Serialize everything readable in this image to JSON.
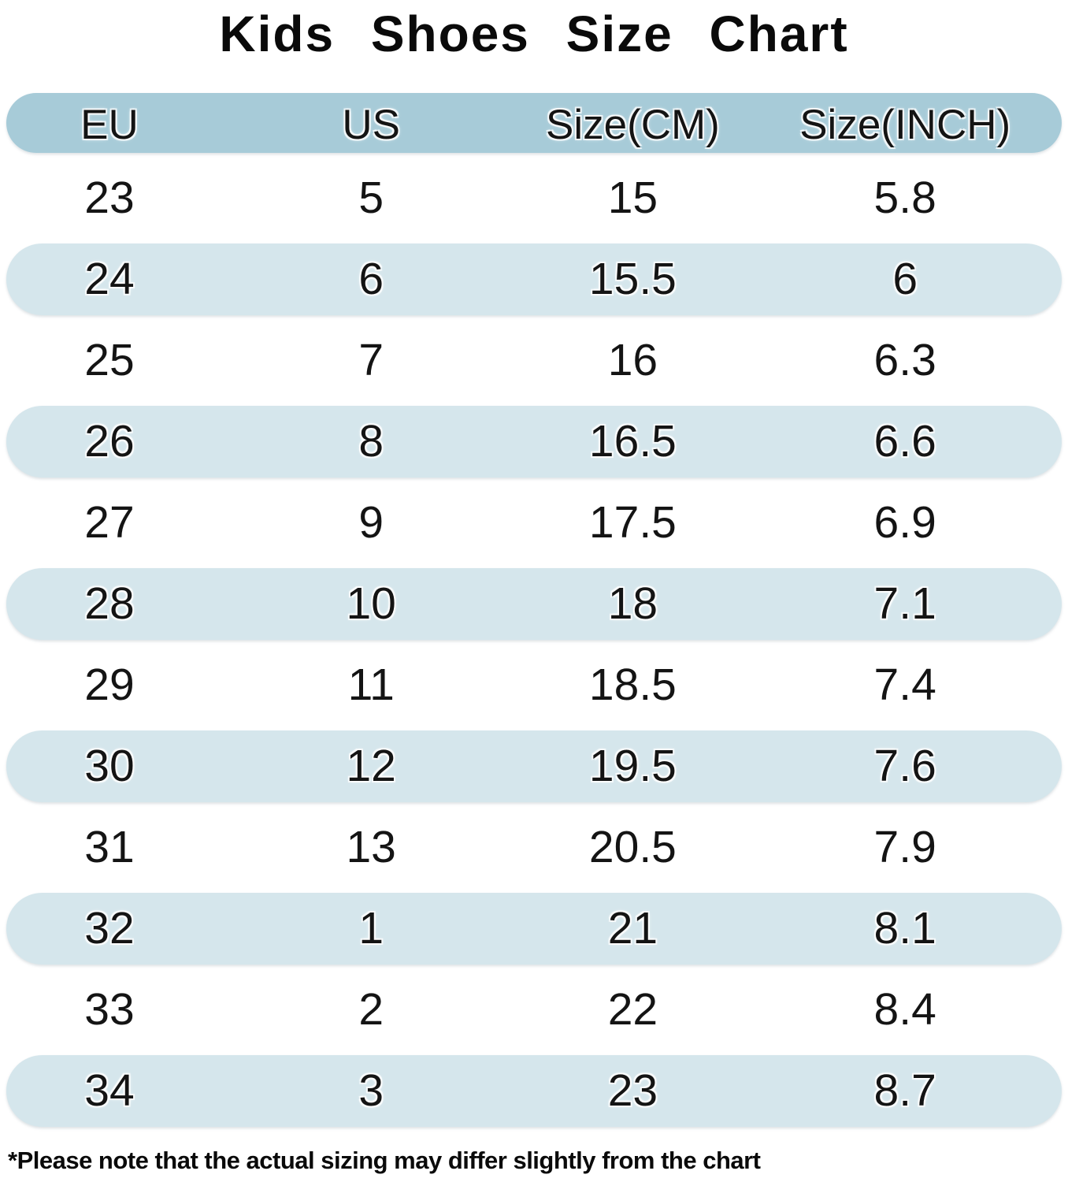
{
  "title": "Kids Shoes Size Chart",
  "table": {
    "columns": [
      "EU",
      "US",
      "Size(CM)",
      "Size(INCH)"
    ],
    "rows": [
      [
        "23",
        "5",
        "15",
        "5.8"
      ],
      [
        "24",
        "6",
        "15.5",
        "6"
      ],
      [
        "25",
        "7",
        "16",
        "6.3"
      ],
      [
        "26",
        "8",
        "16.5",
        "6.6"
      ],
      [
        "27",
        "9",
        "17.5",
        "6.9"
      ],
      [
        "28",
        "10",
        "18",
        "7.1"
      ],
      [
        "29",
        "11",
        "18.5",
        "7.4"
      ],
      [
        "30",
        "12",
        "19.5",
        "7.6"
      ],
      [
        "31",
        "13",
        "20.5",
        "7.9"
      ],
      [
        "32",
        "1",
        "21",
        "8.1"
      ],
      [
        "33",
        "2",
        "22",
        "8.4"
      ],
      [
        "34",
        "3",
        "23",
        "8.7"
      ]
    ]
  },
  "footnote": "*Please note that the actual sizing may differ slightly from the chart",
  "colors": {
    "page_bg": "#ffffff",
    "header_bg": "#a7cbd8",
    "row_bg": "#d5e6ec",
    "text": "#141414"
  },
  "chart_data": {
    "type": "table",
    "title": "Kids Shoes Size Chart",
    "columns": [
      "EU",
      "US",
      "Size(CM)",
      "Size(INCH)"
    ],
    "rows": [
      [
        23,
        5,
        15,
        5.8
      ],
      [
        24,
        6,
        15.5,
        6
      ],
      [
        25,
        7,
        16,
        6.3
      ],
      [
        26,
        8,
        16.5,
        6.6
      ],
      [
        27,
        9,
        17.5,
        6.9
      ],
      [
        28,
        10,
        18,
        7.1
      ],
      [
        29,
        11,
        18.5,
        7.4
      ],
      [
        30,
        12,
        19.5,
        7.6
      ],
      [
        31,
        13,
        20.5,
        7.9
      ],
      [
        32,
        1,
        21,
        8.1
      ],
      [
        33,
        2,
        22,
        8.4
      ],
      [
        34,
        3,
        23,
        8.7
      ]
    ],
    "footnote": "*Please note that the actual sizing may differ slightly from the chart",
    "layout_hints": {
      "striped_rows": "every second data row shaded light blue, pill-shaped",
      "header_style": "darker blue pill"
    }
  }
}
